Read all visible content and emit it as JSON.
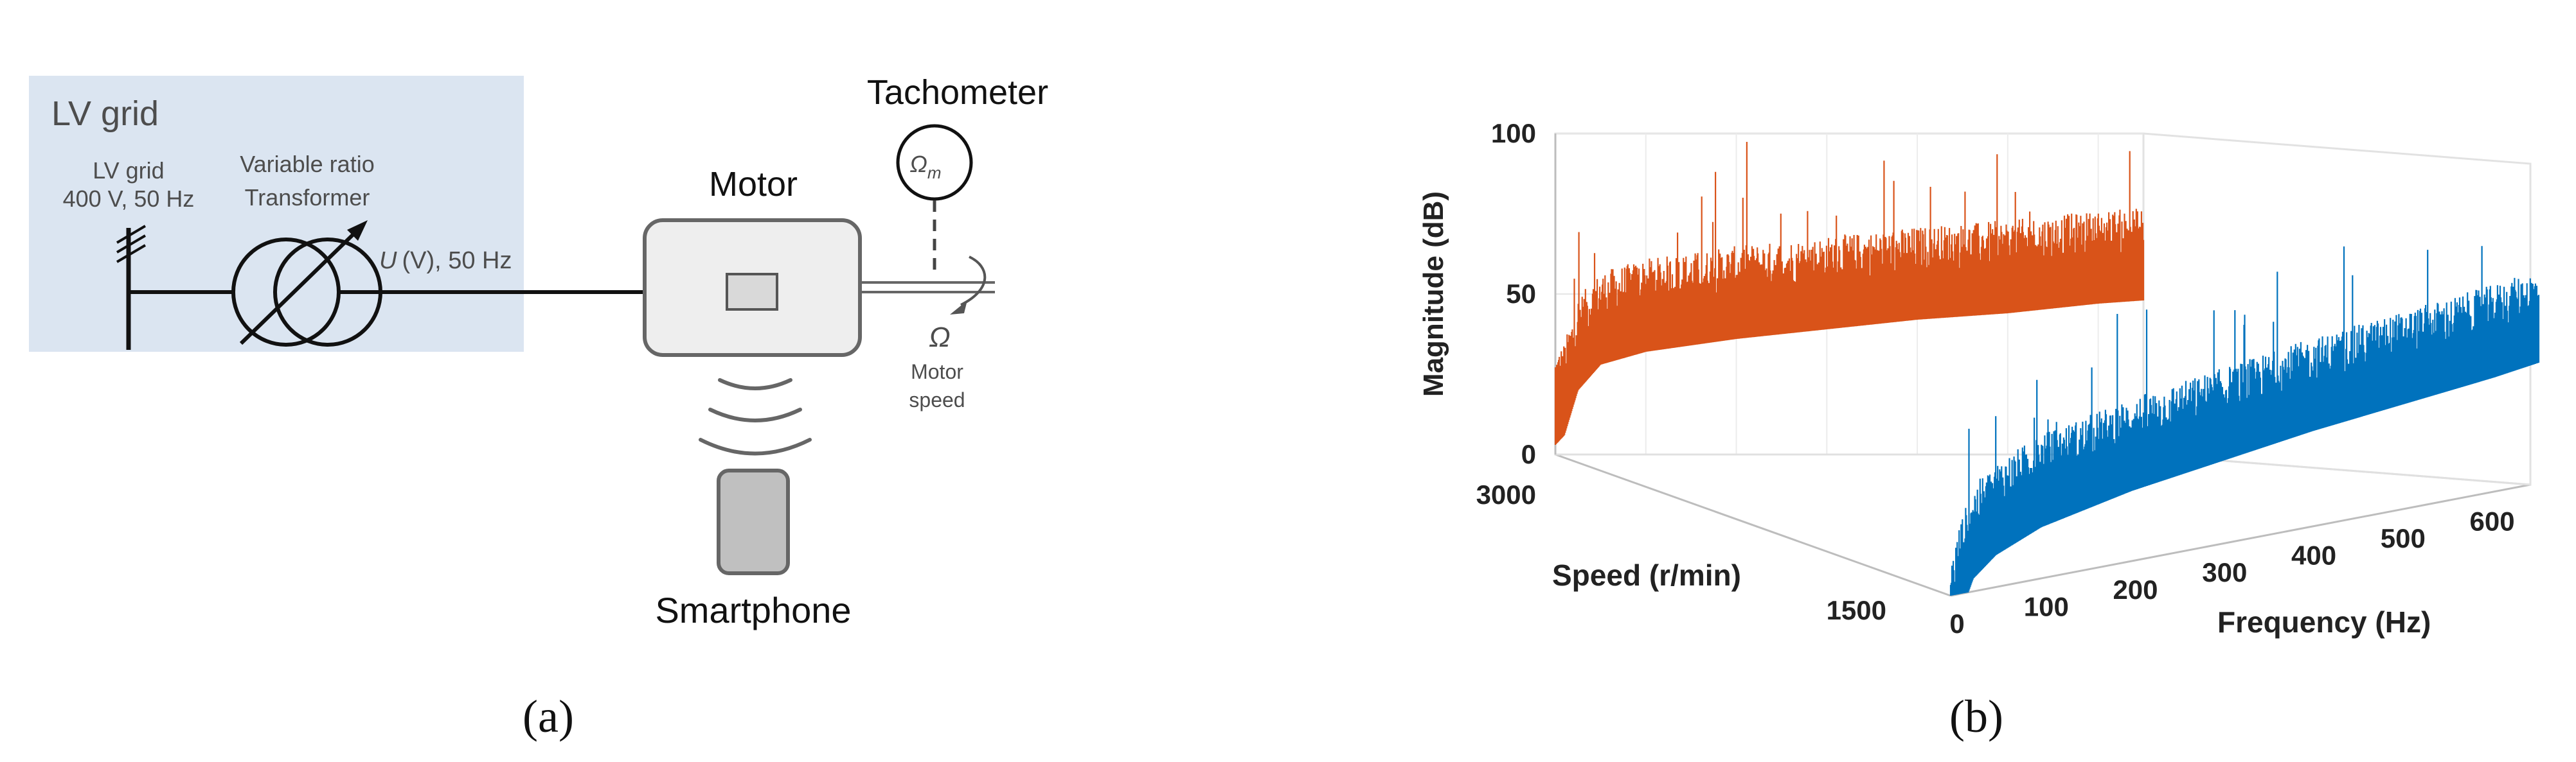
{
  "panel_a": {
    "caption": "(a)",
    "grid_box_title": "LV grid",
    "grid_label_line1": "LV grid",
    "grid_label_line2": "400 V, 50 Hz",
    "transformer_label_line1": "Variable ratio",
    "transformer_label_line2": "Transformer",
    "voltage_symbol": "U",
    "voltage_label_rest": "(V), 50 Hz",
    "motor_label": "Motor",
    "tachometer_label": "Tachometer",
    "tachometer_symbol": "Ω",
    "tachometer_subscript": "m",
    "speed_symbol": "Ω",
    "speed_label_line1": "Motor",
    "speed_label_line2": "speed",
    "smartphone_label": "Smartphone",
    "colors": {
      "grid_box": "#dbe5f1",
      "motor_fill": "#eeeeee",
      "phone_fill": "#c0c0c0",
      "line": "#111111",
      "outline": "#666666"
    }
  },
  "panel_b": {
    "caption": "(b)",
    "chart_data": {
      "type": "3d-line-waterfall",
      "zlabel": "Magnitude (dB)",
      "ylabel": "Speed (r/min)",
      "xlabel": "Frequency (Hz)",
      "z_ticks": [
        "0",
        "50",
        "100"
      ],
      "y_ticks": [
        "3000",
        "1500"
      ],
      "x_ticks": [
        "0",
        "100",
        "200",
        "300",
        "400",
        "500",
        "600"
      ],
      "zlim": [
        0,
        100
      ],
      "xlim": [
        0,
        650
      ],
      "series": [
        {
          "speed": 3000,
          "color": "#d95319",
          "envelope": {
            "frequency_hz": [
              0,
              10,
              25,
              50,
              100,
              200,
              300,
              400,
              500,
              600,
              650
            ],
            "magnitude_db": [
              25,
              28,
              42,
              50,
              54,
              58,
              61,
              64,
              66,
              69,
              70
            ]
          }
        },
        {
          "speed": 1500,
          "color": "#0072bd",
          "envelope": {
            "frequency_hz": [
              0,
              10,
              25,
              50,
              100,
              200,
              300,
              400,
              500,
              600,
              650
            ],
            "magnitude_db": [
              3,
              15,
              26,
              32,
              38,
              44,
              48,
              52,
              55,
              58,
              60
            ]
          }
        }
      ],
      "grid": true
    }
  }
}
